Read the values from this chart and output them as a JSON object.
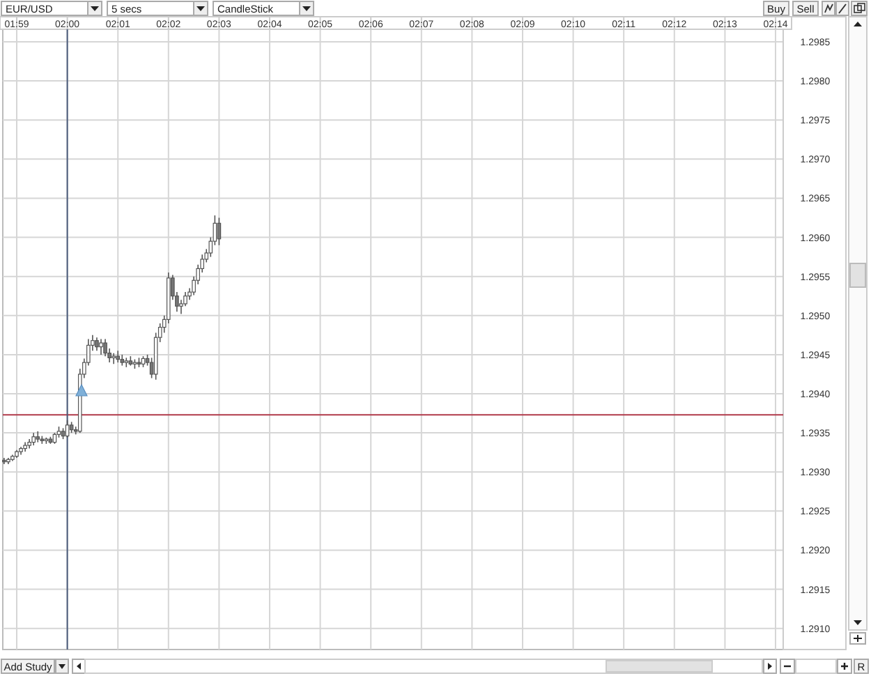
{
  "chart_data": {
    "type": "candlestick",
    "annotations": [
      "EUR/USD",
      "5 secs",
      "CandleStick",
      "Buy",
      "Sell",
      "Add Study",
      "R"
    ],
    "x": [
      1.97917,
      1.98056,
      1.98194,
      1.98333,
      1.98472,
      1.98611,
      1.9875,
      1.98889,
      1.99028,
      1.99167,
      1.99306,
      1.99444,
      1.99583,
      1.99722,
      1.99861,
      2.0,
      2.00139,
      2.00278,
      2.00417,
      2.00556,
      2.00694,
      2.00833,
      2.00972,
      2.01111,
      2.0125,
      2.01389,
      2.01528,
      2.01667,
      2.01806,
      2.01944,
      2.02083,
      2.02222,
      2.02361,
      2.025,
      2.02639,
      2.02778,
      2.02917,
      2.03056,
      2.03194,
      2.03333,
      2.03472,
      2.03611,
      2.0375,
      2.03889,
      2.04028,
      2.04167,
      2.04306,
      2.04444,
      2.04583,
      2.04722,
      2.04861,
      2.05
    ],
    "ohlc": [
      [
        1.29315,
        1.29318,
        1.2931,
        1.29313
      ],
      [
        1.29313,
        1.29318,
        1.2931,
        1.29316
      ],
      [
        1.29316,
        1.29322,
        1.29314,
        1.2932
      ],
      [
        1.2932,
        1.29328,
        1.29318,
        1.29326
      ],
      [
        1.29326,
        1.29332,
        1.29322,
        1.2933
      ],
      [
        1.2933,
        1.29338,
        1.29326,
        1.29334
      ],
      [
        1.29334,
        1.29342,
        1.2933,
        1.29338
      ],
      [
        1.29338,
        1.2935,
        1.29334,
        1.29345
      ],
      [
        1.29345,
        1.29352,
        1.29338,
        1.29342
      ],
      [
        1.29342,
        1.29346,
        1.29336,
        1.2934
      ],
      [
        1.2934,
        1.29344,
        1.29336,
        1.29342
      ],
      [
        1.29342,
        1.29345,
        1.29336,
        1.29338
      ],
      [
        1.29338,
        1.2935,
        1.29336,
        1.29348
      ],
      [
        1.29348,
        1.29358,
        1.29344,
        1.29352
      ],
      [
        1.29352,
        1.29356,
        1.29342,
        1.29346
      ],
      [
        1.29346,
        1.29366,
        1.29344,
        1.2936
      ],
      [
        1.2936,
        1.29364,
        1.2935,
        1.29354
      ],
      [
        1.29354,
        1.29358,
        1.29348,
        1.29352
      ],
      [
        1.29352,
        1.29432,
        1.2935,
        1.29425
      ],
      [
        1.29425,
        1.29445,
        1.2942,
        1.2944
      ],
      [
        1.2944,
        1.2947,
        1.29436,
        1.29462
      ],
      [
        1.29462,
        1.29475,
        1.29455,
        1.29468
      ],
      [
        1.29468,
        1.29472,
        1.29455,
        1.2946
      ],
      [
        1.2946,
        1.2947,
        1.2945,
        1.29465
      ],
      [
        1.29465,
        1.2947,
        1.29448,
        1.29452
      ],
      [
        1.29452,
        1.29458,
        1.2944,
        1.29446
      ],
      [
        1.29446,
        1.29452,
        1.29438,
        1.29448
      ],
      [
        1.29448,
        1.29455,
        1.2944,
        1.29444
      ],
      [
        1.29444,
        1.2945,
        1.29436,
        1.2944
      ],
      [
        1.2944,
        1.29446,
        1.29434,
        1.29442
      ],
      [
        1.29442,
        1.29448,
        1.29436,
        1.29438
      ],
      [
        1.29438,
        1.29444,
        1.29432,
        1.2944
      ],
      [
        1.2944,
        1.29446,
        1.29434,
        1.29438
      ],
      [
        1.29438,
        1.29448,
        1.29434,
        1.29445
      ],
      [
        1.29445,
        1.2945,
        1.29436,
        1.2944
      ],
      [
        1.2944,
        1.29446,
        1.2942,
        1.29425
      ],
      [
        1.29425,
        1.29478,
        1.29418,
        1.29472
      ],
      [
        1.29472,
        1.2949,
        1.29466,
        1.29485
      ],
      [
        1.29485,
        1.295,
        1.29478,
        1.29495
      ],
      [
        1.29495,
        1.29555,
        1.2949,
        1.29548
      ],
      [
        1.29548,
        1.29552,
        1.2952,
        1.29525
      ],
      [
        1.29525,
        1.2953,
        1.29505,
        1.29512
      ],
      [
        1.29512,
        1.2952,
        1.29502,
        1.29515
      ],
      [
        1.29515,
        1.2953,
        1.29512,
        1.29525
      ],
      [
        1.29525,
        1.29535,
        1.2952,
        1.2953
      ],
      [
        1.2953,
        1.2955,
        1.29526,
        1.29545
      ],
      [
        1.29545,
        1.29565,
        1.2954,
        1.2956
      ],
      [
        1.2956,
        1.29578,
        1.29555,
        1.29572
      ],
      [
        1.29572,
        1.29585,
        1.29568,
        1.2958
      ],
      [
        1.2958,
        1.296,
        1.29575,
        1.29595
      ],
      [
        1.29595,
        1.29628,
        1.2959,
        1.29618
      ],
      [
        1.29618,
        1.29625,
        1.2959,
        1.29598
      ]
    ],
    "xlim": [
      1.97874,
      2.23586
    ],
    "xticks": [
      {
        "value": 1.98333,
        "label": "01:59"
      },
      {
        "value": 2.0,
        "label": "02:00"
      },
      {
        "value": 2.01667,
        "label": "02:01"
      },
      {
        "value": 2.03333,
        "label": "02:02"
      },
      {
        "value": 2.05,
        "label": "02:03"
      },
      {
        "value": 2.06667,
        "label": "02:04"
      },
      {
        "value": 2.08333,
        "label": "02:05"
      },
      {
        "value": 2.1,
        "label": "02:06"
      },
      {
        "value": 2.11667,
        "label": "02:07"
      },
      {
        "value": 2.13333,
        "label": "02:08"
      },
      {
        "value": 2.15,
        "label": "02:09"
      },
      {
        "value": 2.16667,
        "label": "02:10"
      },
      {
        "value": 2.18333,
        "label": "02:11"
      },
      {
        "value": 2.2,
        "label": "02:12"
      },
      {
        "value": 2.21667,
        "label": "02:13"
      },
      {
        "value": 2.23333,
        "label": "02:14"
      }
    ],
    "ylim": [
      1.29073,
      1.29866
    ],
    "yticks": [
      {
        "value": 1.291,
        "label": "1.2910"
      },
      {
        "value": 1.2915,
        "label": "1.2915"
      },
      {
        "value": 1.292,
        "label": "1.2920"
      },
      {
        "value": 1.2925,
        "label": "1.2925"
      },
      {
        "value": 1.293,
        "label": "1.2930"
      },
      {
        "value": 1.2935,
        "label": "1.2935"
      },
      {
        "value": 1.294,
        "label": "1.2940"
      },
      {
        "value": 1.2945,
        "label": "1.2945"
      },
      {
        "value": 1.295,
        "label": "1.2950"
      },
      {
        "value": 1.2955,
        "label": "1.2955"
      },
      {
        "value": 1.296,
        "label": "1.2960"
      },
      {
        "value": 1.2965,
        "label": "1.2965"
      },
      {
        "value": 1.297,
        "label": "1.2970"
      },
      {
        "value": 1.2975,
        "label": "1.2975"
      },
      {
        "value": 1.298,
        "label": "1.2980"
      },
      {
        "value": 1.2985,
        "label": "1.2985"
      }
    ],
    "ref_lines": [
      {
        "axis": "y",
        "value": 1.29373,
        "color": "#b03a4a"
      },
      {
        "axis": "x",
        "value": 2.0,
        "color": "#4a5a7a"
      }
    ],
    "grid": true
  }
}
